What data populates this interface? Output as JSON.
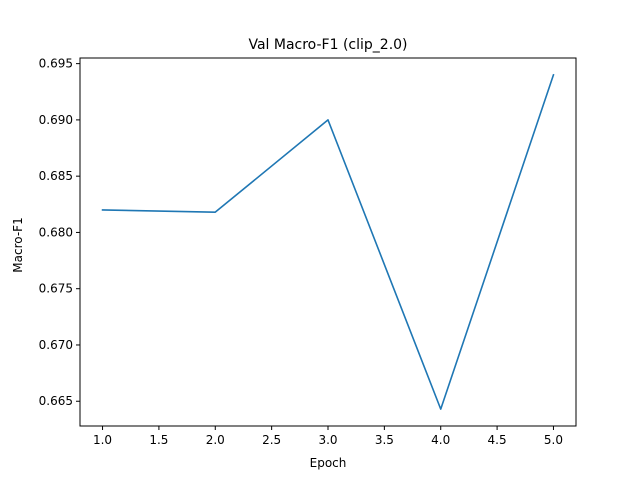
{
  "chart_data": {
    "type": "line",
    "title": "Val Macro-F1 (clip_2.0)",
    "xlabel": "Epoch",
    "ylabel": "Macro-F1",
    "x": [
      1.0,
      2.0,
      3.0,
      4.0,
      5.0
    ],
    "series": [
      {
        "values": [
          0.682,
          0.6818,
          0.69,
          0.6643,
          0.694
        ],
        "color": "#1f77b4"
      }
    ],
    "xlim": [
      0.8,
      5.2
    ],
    "ylim": [
      0.6628,
      0.6955
    ],
    "xticks": [
      1.0,
      1.5,
      2.0,
      2.5,
      3.0,
      3.5,
      4.0,
      4.5,
      5.0
    ],
    "xtick_labels": [
      "1.0",
      "1.5",
      "2.0",
      "2.5",
      "3.0",
      "3.5",
      "4.0",
      "4.5",
      "5.0"
    ],
    "yticks": [
      0.665,
      0.67,
      0.675,
      0.68,
      0.685,
      0.69,
      0.695
    ],
    "ytick_labels": [
      "0.665",
      "0.670",
      "0.675",
      "0.680",
      "0.685",
      "0.690",
      "0.695"
    ],
    "grid": false,
    "legend": "none"
  }
}
